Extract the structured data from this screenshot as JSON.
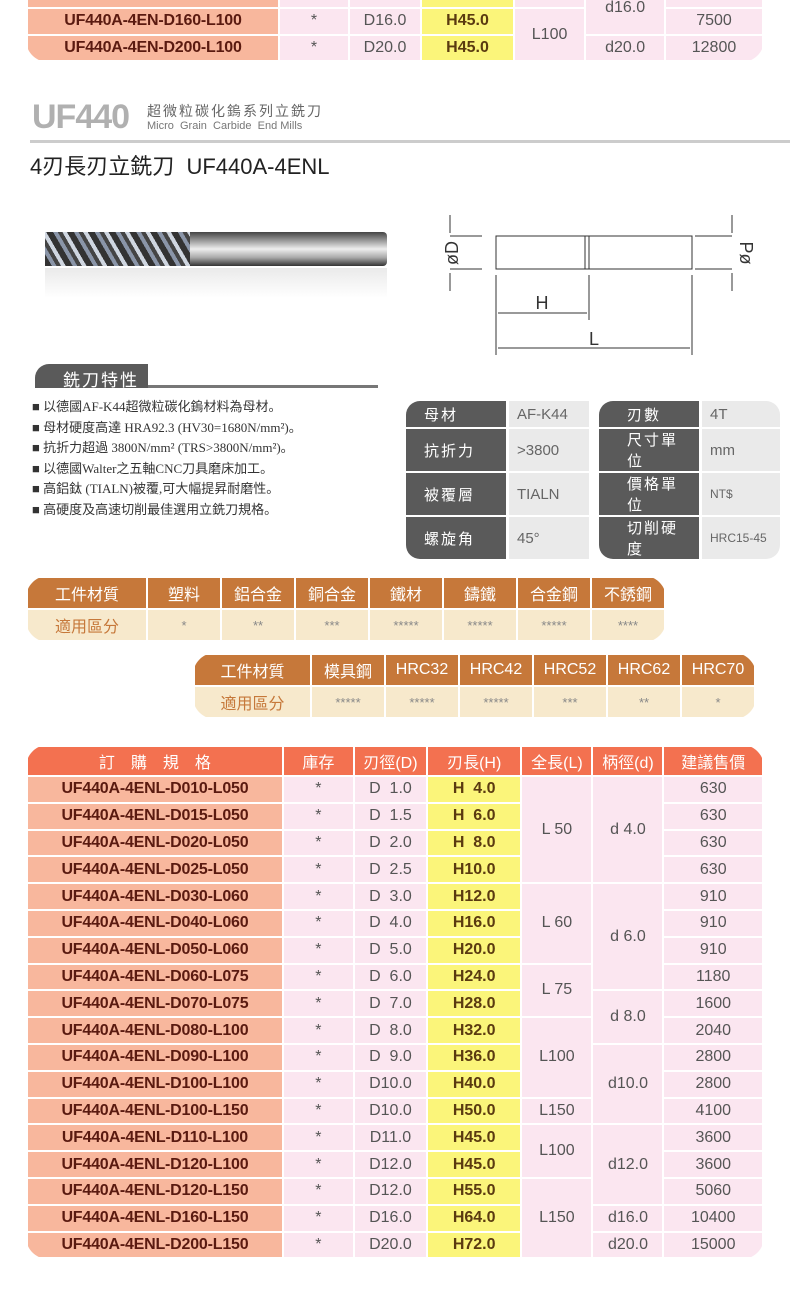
{
  "prev_table": {
    "rows": [
      {
        "spec": "",
        "stock": "",
        "d": "",
        "h": "",
        "price": ""
      },
      {
        "spec": "UF440A-4EN-D160-L100",
        "stock": "*",
        "d": "D16.0",
        "h": "H45.0",
        "price": "7500"
      },
      {
        "spec": "UF440A-4EN-D200-L100",
        "stock": "*",
        "d": "D20.0",
        "h": "H45.0",
        "price": "12800"
      }
    ],
    "length_groups": [
      {
        "value": "",
        "rows": 1
      },
      {
        "value": "L100",
        "rows": 2
      }
    ],
    "shank_groups": [
      {
        "value": "d16.0",
        "rows": 2
      },
      {
        "value": "d20.0",
        "rows": 1
      }
    ]
  },
  "series": {
    "code": "UF440",
    "name_zh": "超微粒碳化鎢系列立銑刀",
    "name_en": "Micro  Grain  Carbide  End Mills"
  },
  "product_title": "4刃長刃立銑刀  UF440A-4ENL",
  "diagram": {
    "d_label": "øD",
    "shank_label": "Pø",
    "h_label": "H",
    "l_label": "L"
  },
  "features": {
    "title": "銑刀特性",
    "items": [
      "以德國AF-K44超微粒碳化鎢材料為母材。",
      "母材硬度高達 HRA92.3 (HV30=1680N/mm²)。",
      "抗折力超過 3800N/mm² (TRS>3800N/mm²)。",
      "以德國Walter之五軸CNC刀具磨床加工。",
      "高鋁鈦 (TIALN)被覆,可大幅提昇耐磨性。",
      "高硬度及高速切削最佳選用立銑刀規格。"
    ]
  },
  "specs": [
    {
      "label": "母材",
      "value": "AF-K44",
      "label2": "刃數",
      "value2": "4T"
    },
    {
      "label": "抗折力",
      "value": ">3800",
      "label2": "尺寸單位",
      "value2": "mm"
    },
    {
      "label": "被覆層",
      "value": "TIALN",
      "label2": "價格單位",
      "value2": "NT$"
    },
    {
      "label": "螺旋角",
      "value": "45°",
      "label2": "切削硬度",
      "value2": "HRC15-45"
    }
  ],
  "materials1": {
    "header": "工件材質",
    "row_label": "適用區分",
    "cols": [
      "塑料",
      "鋁合金",
      "銅合金",
      "鐵材",
      "鑄鐵",
      "合金鋼",
      "不銹鋼"
    ],
    "ratings": [
      "*",
      "**",
      "***",
      "*****",
      "*****",
      "*****",
      "****"
    ]
  },
  "materials2": {
    "header": "工件材質",
    "row_label": "適用區分",
    "cols": [
      "模具鋼",
      "HRC32",
      "HRC42",
      "HRC52",
      "HRC62",
      "HRC70"
    ],
    "ratings": [
      "*****",
      "*****",
      "*****",
      "***",
      "**",
      "*"
    ]
  },
  "order_table": {
    "headers": [
      "訂　購　規　格",
      "庫存",
      "刃徑(D)",
      "刃長(H)",
      "全長(L)",
      "柄徑(d)",
      "建議售價"
    ],
    "rows": [
      {
        "spec": "UF440A-4ENL-D010-L050",
        "stock": "*",
        "d": "D  1.0",
        "h": "H  4.0",
        "price": "630"
      },
      {
        "spec": "UF440A-4ENL-D015-L050",
        "stock": "*",
        "d": "D  1.5",
        "h": "H  6.0",
        "price": "630"
      },
      {
        "spec": "UF440A-4ENL-D020-L050",
        "stock": "*",
        "d": "D  2.0",
        "h": "H  8.0",
        "price": "630"
      },
      {
        "spec": "UF440A-4ENL-D025-L050",
        "stock": "*",
        "d": "D  2.5",
        "h": "H10.0",
        "price": "630"
      },
      {
        "spec": "UF440A-4ENL-D030-L060",
        "stock": "*",
        "d": "D  3.0",
        "h": "H12.0",
        "price": "910"
      },
      {
        "spec": "UF440A-4ENL-D040-L060",
        "stock": "*",
        "d": "D  4.0",
        "h": "H16.0",
        "price": "910"
      },
      {
        "spec": "UF440A-4ENL-D050-L060",
        "stock": "*",
        "d": "D  5.0",
        "h": "H20.0",
        "price": "910"
      },
      {
        "spec": "UF440A-4ENL-D060-L075",
        "stock": "*",
        "d": "D  6.0",
        "h": "H24.0",
        "price": "1180"
      },
      {
        "spec": "UF440A-4ENL-D070-L075",
        "stock": "*",
        "d": "D  7.0",
        "h": "H28.0",
        "price": "1600"
      },
      {
        "spec": "UF440A-4ENL-D080-L100",
        "stock": "*",
        "d": "D  8.0",
        "h": "H32.0",
        "price": "2040"
      },
      {
        "spec": "UF440A-4ENL-D090-L100",
        "stock": "*",
        "d": "D  9.0",
        "h": "H36.0",
        "price": "2800"
      },
      {
        "spec": "UF440A-4ENL-D100-L100",
        "stock": "*",
        "d": "D10.0",
        "h": "H40.0",
        "price": "2800"
      },
      {
        "spec": "UF440A-4ENL-D100-L150",
        "stock": "*",
        "d": "D10.0",
        "h": "H50.0",
        "price": "4100"
      },
      {
        "spec": "UF440A-4ENL-D110-L100",
        "stock": "*",
        "d": "D11.0",
        "h": "H45.0",
        "price": "3600"
      },
      {
        "spec": "UF440A-4ENL-D120-L100",
        "stock": "*",
        "d": "D12.0",
        "h": "H45.0",
        "price": "3600"
      },
      {
        "spec": "UF440A-4ENL-D120-L150",
        "stock": "*",
        "d": "D12.0",
        "h": "H55.0",
        "price": "5060"
      },
      {
        "spec": "UF440A-4ENL-D160-L150",
        "stock": "*",
        "d": "D16.0",
        "h": "H64.0",
        "price": "10400"
      },
      {
        "spec": "UF440A-4ENL-D200-L150",
        "stock": "*",
        "d": "D20.0",
        "h": "H72.0",
        "price": "15000"
      }
    ],
    "length_groups": [
      {
        "value": "L 50",
        "rows": 4
      },
      {
        "value": "L 60",
        "rows": 3
      },
      {
        "value": "L 75",
        "rows": 2
      },
      {
        "value": "L100",
        "rows": 3
      },
      {
        "value": "L150",
        "rows": 1
      },
      {
        "value": "L100",
        "rows": 2
      },
      {
        "value": "L150",
        "rows": 3
      }
    ],
    "shank_groups": [
      {
        "value": "d 4.0",
        "rows": 4
      },
      {
        "value": "d 6.0",
        "rows": 4
      },
      {
        "value": "d 8.0",
        "rows": 2
      },
      {
        "value": "d10.0",
        "rows": 3
      },
      {
        "value": "d12.0",
        "rows": 3
      },
      {
        "value": "d16.0",
        "rows": 1
      },
      {
        "value": "d20.0",
        "rows": 1
      }
    ]
  },
  "colors": {
    "order_header": "#f37150",
    "spec_cell": "#f8b79d",
    "h_cell": "#fbf57a",
    "cell": "#fbe6f0",
    "material_header": "#c6783a",
    "material_row": "#f7e9cc",
    "spec_label": "#5a5a5a"
  }
}
